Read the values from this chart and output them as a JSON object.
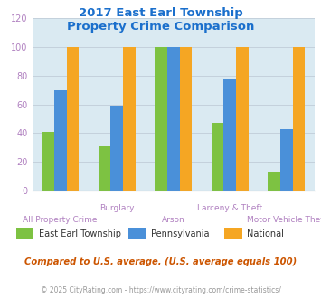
{
  "title_line1": "2017 East Earl Township",
  "title_line2": "Property Crime Comparison",
  "categories": [
    "All Property Crime",
    "Burglary",
    "Arson",
    "Larceny & Theft",
    "Motor Vehicle Theft"
  ],
  "series_names": [
    "East Earl Township",
    "Pennsylvania",
    "National"
  ],
  "series_values": {
    "East Earl Township": [
      41,
      31,
      100,
      47,
      13
    ],
    "Pennsylvania": [
      70,
      59,
      100,
      77,
      43
    ],
    "National": [
      100,
      100,
      100,
      100,
      100
    ]
  },
  "colors": {
    "East Earl Township": "#7dc242",
    "Pennsylvania": "#4a90d9",
    "National": "#f5a623"
  },
  "ylim": [
    0,
    120
  ],
  "yticks": [
    0,
    20,
    40,
    60,
    80,
    100,
    120
  ],
  "title_color": "#1a6fcc",
  "xlabel_top_color": "#b080c0",
  "xlabel_bottom_color": "#b080c0",
  "ylabel_color": "#b080c0",
  "grid_color": "#c0cdd8",
  "bg_color": "#daeaf2",
  "footnote": "Compared to U.S. average. (U.S. average equals 100)",
  "copyright": "© 2025 CityRating.com - https://www.cityrating.com/crime-statistics/",
  "footnote_color": "#cc5500",
  "copyright_color": "#999999",
  "top_row_labels": {
    "1": "Burglary",
    "3": "Larceny & Theft"
  },
  "bottom_row_labels": {
    "0": "All Property Crime",
    "2": "Arson",
    "4": "Motor Vehicle Theft"
  }
}
